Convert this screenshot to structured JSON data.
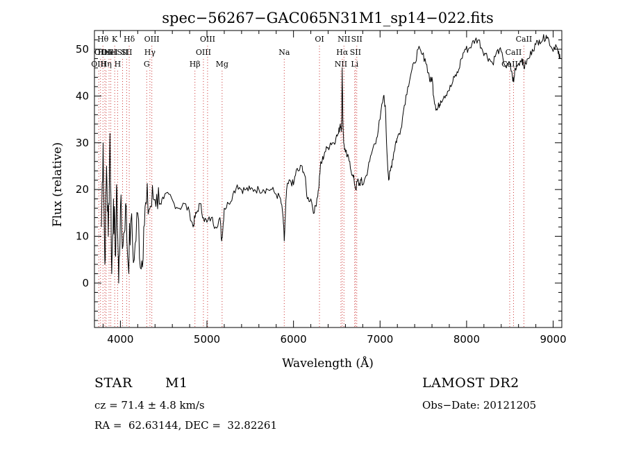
{
  "chart_data": {
    "type": "line",
    "title": "spec−56267−GAC065N31M1_sp14−022.fits",
    "xlabel": "Wavelength (Å)",
    "ylabel": "Flux (relative)",
    "xlim": [
      3700,
      9100
    ],
    "ylim": [
      -9.5,
      54
    ],
    "x_ticks": [
      4000,
      5000,
      6000,
      7000,
      8000,
      9000
    ],
    "y_ticks": [
      0,
      10,
      20,
      30,
      40,
      50
    ],
    "grid": false,
    "series": [
      {
        "line_color": "#000000",
        "x": [
          3780,
          3800,
          3820,
          3840,
          3860,
          3880,
          3900,
          3920,
          3940,
          3960,
          3980,
          4000,
          4030,
          4060,
          4090,
          4120,
          4160,
          4200,
          4240,
          4270,
          4300,
          4340,
          4380,
          4420,
          4460,
          4500,
          4560,
          4620,
          4680,
          4740,
          4800,
          4840,
          4860,
          4880,
          4920,
          4960,
          5000,
          5050,
          5100,
          5150,
          5170,
          5185,
          5200,
          5250,
          5300,
          5350,
          5400,
          5450,
          5500,
          5550,
          5600,
          5650,
          5700,
          5750,
          5800,
          5850,
          5880,
          5893,
          5905,
          5920,
          5960,
          6000,
          6030,
          6060,
          6100,
          6130,
          6160,
          6200,
          6240,
          6270,
          6290,
          6310,
          6330,
          6360,
          6400,
          6430,
          6460,
          6490,
          6520,
          6540,
          6555,
          6563,
          6570,
          6580,
          6600,
          6620,
          6650,
          6680,
          6700,
          6720,
          6740,
          6760,
          6780,
          6800,
          6840,
          6880,
          6920,
          6960,
          7000,
          7040,
          7060,
          7080,
          7100,
          7120,
          7140,
          7160,
          7180,
          7200,
          7240,
          7280,
          7320,
          7360,
          7400,
          7440,
          7480,
          7520,
          7560,
          7580,
          7600,
          7620,
          7640,
          7660,
          7680,
          7700,
          7740,
          7780,
          7820,
          7860,
          7900,
          7940,
          7980,
          8020,
          8060,
          8100,
          8140,
          8180,
          8220,
          8260,
          8300,
          8340,
          8380,
          8420,
          8460,
          8500,
          8530,
          8545,
          8560,
          8600,
          8640,
          8662,
          8680,
          8720,
          8760,
          8800,
          8840,
          8880,
          8920,
          8950,
          8990,
          9030,
          9060,
          9080
        ],
        "y": [
          12,
          30,
          4,
          25,
          10,
          32,
          2,
          18,
          6,
          20,
          0,
          16,
          8,
          17,
          4,
          13,
          5,
          15,
          3,
          12,
          17,
          16,
          18,
          19,
          17,
          18,
          19,
          17,
          16,
          17,
          15,
          12,
          14,
          15,
          17,
          14,
          13,
          14,
          12,
          14,
          9,
          12,
          16,
          17,
          19,
          21,
          20,
          20,
          20,
          20,
          20,
          20,
          20,
          20,
          19,
          18,
          14,
          9,
          14,
          20,
          22,
          21,
          24,
          24,
          25,
          23,
          18,
          18,
          15,
          18,
          20,
          25,
          26,
          28,
          29,
          30,
          30,
          31,
          32,
          34,
          33,
          46,
          35,
          30,
          28,
          27,
          26,
          23,
          22,
          20,
          22,
          21,
          22,
          21,
          23,
          26,
          29,
          31,
          35,
          40,
          38,
          28,
          22,
          24,
          26,
          28,
          30,
          31,
          33,
          38,
          42,
          45,
          47,
          50,
          49,
          48,
          45,
          43,
          44,
          40,
          38,
          37,
          38,
          39,
          40,
          41,
          42,
          44,
          45,
          48,
          50,
          50,
          51,
          52,
          52,
          50,
          49,
          48,
          47,
          49,
          50,
          48,
          46,
          47,
          44,
          43,
          46,
          47,
          48,
          46,
          47,
          48,
          50,
          51,
          52,
          52,
          53,
          52,
          50,
          51,
          49,
          48
        ]
      }
    ],
    "annotations": [
      {
        "wave": 3750,
        "label": "OIII",
        "row": 2
      },
      {
        "wave": 3770,
        "label": "OII",
        "row": 1
      },
      {
        "wave": 3798,
        "label": "Hθ",
        "row": 0
      },
      {
        "wave": 3820,
        "label": "HeI",
        "row": 1
      },
      {
        "wave": 3835,
        "label": "Hη",
        "row": 2
      },
      {
        "wave": 3869,
        "label": "OIII",
        "row": 3
      },
      {
        "wave": 3889,
        "label": "HeI",
        "row": 3
      },
      {
        "wave": 3934,
        "label": "K",
        "row": 0
      },
      {
        "wave": 3968,
        "label": "H",
        "row": 2
      },
      {
        "wave": 4025,
        "label": "SII",
        "row": 1
      },
      {
        "wave": 4072,
        "label": "SII",
        "row": 3
      },
      {
        "wave": 4102,
        "label": "Hδ",
        "row": 0
      },
      {
        "wave": 4304,
        "label": "G",
        "row": 2
      },
      {
        "wave": 4341,
        "label": "Hγ",
        "row": 1
      },
      {
        "wave": 4363,
        "label": "OIII",
        "row": 0
      },
      {
        "wave": 4861,
        "label": "Hβ",
        "row": 2
      },
      {
        "wave": 4959,
        "label": "OIII",
        "row": 1
      },
      {
        "wave": 5007,
        "label": "OIII",
        "row": 0
      },
      {
        "wave": 5175,
        "label": "Mg",
        "row": 2
      },
      {
        "wave": 5893,
        "label": "Na",
        "row": 1
      },
      {
        "wave": 6300,
        "label": "OI",
        "row": 0
      },
      {
        "wave": 6548,
        "label": "NII",
        "row": 2
      },
      {
        "wave": 6563,
        "label": "Hα",
        "row": 1
      },
      {
        "wave": 6583,
        "label": "NII",
        "row": 0
      },
      {
        "wave": 6707,
        "label": "Li",
        "row": 2
      },
      {
        "wave": 6716,
        "label": "SII",
        "row": 1
      },
      {
        "wave": 6731,
        "label": "SII",
        "row": 0
      },
      {
        "wave": 8498,
        "label": "CaII",
        "row": 2
      },
      {
        "wave": 8542,
        "label": "CaII",
        "row": 1
      },
      {
        "wave": 8662,
        "label": "CaII",
        "row": 0
      }
    ]
  },
  "info": {
    "object_class": "STAR",
    "subclass": "M1",
    "survey": "LAMOST DR2",
    "redshift": "cz = 71.4 ± 4.8 km/s",
    "obs_date": "Obs−Date: 20121205",
    "coords": "RA =  62.63144, DEC =  32.82261"
  }
}
